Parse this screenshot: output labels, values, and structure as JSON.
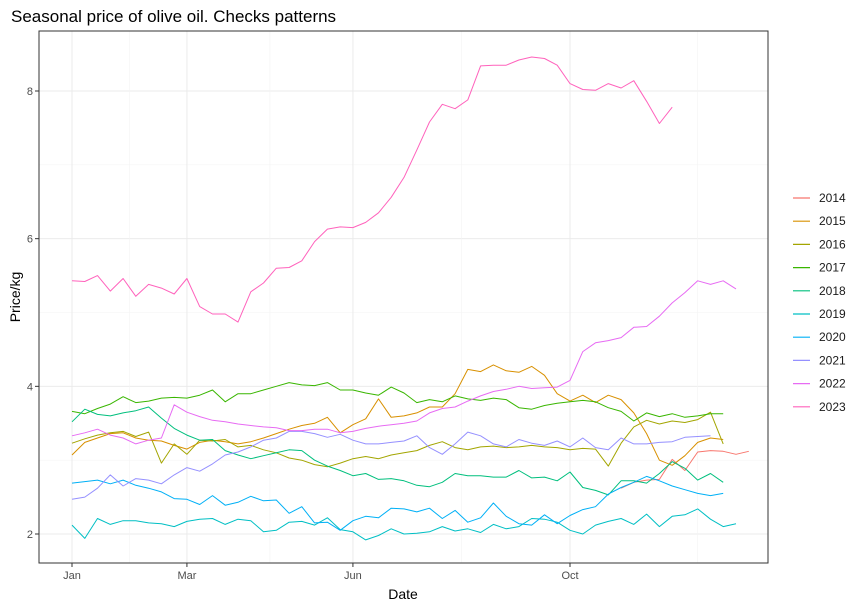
{
  "chart_data": {
    "type": "line",
    "title": "Seasonal price of olive oil. Checks patterns",
    "xlabel": "Date",
    "ylabel": "Price/kg",
    "x_ticks": [
      {
        "label": "Jan",
        "week": 1
      },
      {
        "label": "Mar",
        "week": 10
      },
      {
        "label": "Jun",
        "week": 23
      },
      {
        "label": "Oct",
        "week": 40
      }
    ],
    "x_range_weeks": [
      0,
      52
    ],
    "y_ticks": [
      2,
      4,
      6,
      8
    ],
    "ylim": [
      1.6,
      8.8
    ],
    "grid": true,
    "legend_position": "right",
    "series": [
      {
        "name": "2014",
        "color": "#F8766D",
        "start_week": 44,
        "values": [
          2.62,
          2.7,
          2.73,
          2.74,
          3.01,
          2.86,
          3.11,
          3.13,
          3.12,
          3.08,
          3.12
        ]
      },
      {
        "name": "2015",
        "color": "#D89000",
        "start_week": 1,
        "values": [
          3.07,
          3.24,
          3.3,
          3.36,
          3.37,
          3.3,
          3.27,
          3.26,
          3.2,
          3.15,
          3.24,
          3.27,
          3.25,
          3.22,
          3.25,
          3.3,
          3.36,
          3.42,
          3.47,
          3.5,
          3.58,
          3.37,
          3.48,
          3.56,
          3.83,
          3.58,
          3.6,
          3.64,
          3.72,
          3.72,
          3.9,
          4.23,
          4.2,
          4.29,
          4.21,
          4.19,
          4.27,
          4.15,
          3.9,
          3.8,
          3.88,
          3.78,
          3.88,
          3.82,
          3.64,
          3.36,
          3.0,
          2.93,
          3.06,
          3.24,
          3.3,
          3.28
        ]
      },
      {
        "name": "2016",
        "color": "#A3A500",
        "start_week": 1,
        "values": [
          3.23,
          3.29,
          3.34,
          3.37,
          3.39,
          3.32,
          3.38,
          2.96,
          3.22,
          3.08,
          3.27,
          3.26,
          3.28,
          3.18,
          3.2,
          3.14,
          3.1,
          3.03,
          3.0,
          2.94,
          2.91,
          2.96,
          3.02,
          3.05,
          3.02,
          3.07,
          3.1,
          3.13,
          3.2,
          3.25,
          3.17,
          3.14,
          3.18,
          3.19,
          3.17,
          3.18,
          3.2,
          3.18,
          3.17,
          3.14,
          3.16,
          3.15,
          2.92,
          3.23,
          3.45,
          3.54,
          3.49,
          3.53,
          3.51,
          3.55,
          3.65,
          3.22
        ]
      },
      {
        "name": "2017",
        "color": "#39B600",
        "start_week": 1,
        "values": [
          3.66,
          3.63,
          3.7,
          3.76,
          3.86,
          3.78,
          3.8,
          3.84,
          3.85,
          3.84,
          3.88,
          3.95,
          3.79,
          3.9,
          3.9,
          3.95,
          4.0,
          4.05,
          4.02,
          4.01,
          4.05,
          3.95,
          3.95,
          3.91,
          3.88,
          3.99,
          3.91,
          3.78,
          3.82,
          3.79,
          3.87,
          3.83,
          3.81,
          3.84,
          3.82,
          3.71,
          3.69,
          3.74,
          3.77,
          3.79,
          3.81,
          3.79,
          3.71,
          3.66,
          3.53,
          3.64,
          3.59,
          3.63,
          3.58,
          3.6,
          3.63,
          3.63
        ]
      },
      {
        "name": "2018",
        "color": "#00BF7D",
        "start_week": 1,
        "values": [
          3.52,
          3.69,
          3.62,
          3.6,
          3.64,
          3.67,
          3.72,
          3.57,
          3.43,
          3.34,
          3.27,
          3.28,
          3.13,
          3.07,
          3.02,
          3.06,
          3.1,
          3.14,
          3.13,
          3.0,
          2.92,
          2.86,
          2.79,
          2.82,
          2.74,
          2.75,
          2.72,
          2.66,
          2.64,
          2.7,
          2.82,
          2.79,
          2.79,
          2.77,
          2.77,
          2.86,
          2.76,
          2.77,
          2.72,
          2.84,
          2.63,
          2.59,
          2.53,
          2.72,
          2.72,
          2.69,
          2.82,
          2.98,
          2.89,
          2.73,
          2.82,
          2.7
        ]
      },
      {
        "name": "2019",
        "color": "#00BFC4",
        "start_week": 1,
        "values": [
          2.12,
          1.94,
          2.21,
          2.13,
          2.18,
          2.18,
          2.15,
          2.14,
          2.1,
          2.17,
          2.2,
          2.21,
          2.13,
          2.2,
          2.18,
          2.03,
          2.05,
          2.16,
          2.17,
          2.12,
          2.22,
          2.06,
          2.03,
          1.92,
          1.98,
          2.07,
          2.0,
          2.01,
          2.03,
          2.1,
          2.04,
          2.07,
          2.02,
          2.13,
          2.07,
          2.1,
          2.21,
          2.2,
          2.16,
          2.05,
          2.0,
          2.12,
          2.17,
          2.21,
          2.13,
          2.27,
          2.1,
          2.24,
          2.26,
          2.34,
          2.2,
          2.1,
          2.14
        ]
      },
      {
        "name": "2020",
        "color": "#00B0F6",
        "start_week": 1,
        "values": [
          2.69,
          2.71,
          2.73,
          2.68,
          2.73,
          2.66,
          2.62,
          2.57,
          2.48,
          2.47,
          2.4,
          2.52,
          2.39,
          2.43,
          2.51,
          2.45,
          2.46,
          2.28,
          2.37,
          2.15,
          2.16,
          2.05,
          2.18,
          2.24,
          2.22,
          2.35,
          2.34,
          2.3,
          2.35,
          2.21,
          2.32,
          2.16,
          2.22,
          2.42,
          2.24,
          2.14,
          2.12,
          2.26,
          2.14,
          2.25,
          2.33,
          2.37,
          2.54,
          2.63,
          2.7,
          2.78,
          2.72,
          2.65,
          2.6,
          2.55,
          2.52,
          2.55
        ]
      },
      {
        "name": "2021",
        "color": "#9590FF",
        "start_week": 1,
        "values": [
          2.47,
          2.5,
          2.62,
          2.8,
          2.65,
          2.75,
          2.73,
          2.68,
          2.8,
          2.9,
          2.85,
          2.95,
          3.07,
          3.11,
          3.18,
          3.27,
          3.3,
          3.39,
          3.39,
          3.36,
          3.31,
          3.35,
          3.27,
          3.22,
          3.22,
          3.24,
          3.26,
          3.33,
          3.17,
          3.08,
          3.22,
          3.38,
          3.33,
          3.22,
          3.18,
          3.28,
          3.23,
          3.2,
          3.26,
          3.18,
          3.3,
          3.17,
          3.14,
          3.3,
          3.22,
          3.22,
          3.24,
          3.25,
          3.31,
          3.32,
          3.33
        ]
      },
      {
        "name": "2022",
        "color": "#E76BF3",
        "start_week": 1,
        "values": [
          3.33,
          3.37,
          3.42,
          3.34,
          3.3,
          3.22,
          3.27,
          3.3,
          3.75,
          3.65,
          3.59,
          3.54,
          3.52,
          3.49,
          3.47,
          3.45,
          3.44,
          3.4,
          3.4,
          3.42,
          3.42,
          3.37,
          3.39,
          3.43,
          3.46,
          3.48,
          3.5,
          3.53,
          3.64,
          3.7,
          3.72,
          3.8,
          3.87,
          3.93,
          3.96,
          4.0,
          3.97,
          3.98,
          3.99,
          4.08,
          4.47,
          4.59,
          4.62,
          4.66,
          4.8,
          4.81,
          4.95,
          5.13,
          5.27,
          5.43,
          5.38,
          5.43,
          5.32
        ]
      },
      {
        "name": "2023",
        "color": "#FF62BC",
        "start_week": 1,
        "values": [
          5.43,
          5.42,
          5.5,
          5.29,
          5.46,
          5.22,
          5.38,
          5.33,
          5.25,
          5.46,
          5.08,
          4.98,
          4.98,
          4.87,
          5.28,
          5.4,
          5.6,
          5.61,
          5.7,
          5.96,
          6.13,
          6.16,
          6.15,
          6.22,
          6.35,
          6.56,
          6.83,
          7.2,
          7.58,
          7.82,
          7.76,
          7.88,
          8.34,
          8.35,
          8.35,
          8.42,
          8.46,
          8.44,
          8.35,
          8.1,
          8.02,
          8.01,
          8.1,
          8.04,
          8.14,
          7.86,
          7.56,
          7.78
        ]
      }
    ]
  }
}
